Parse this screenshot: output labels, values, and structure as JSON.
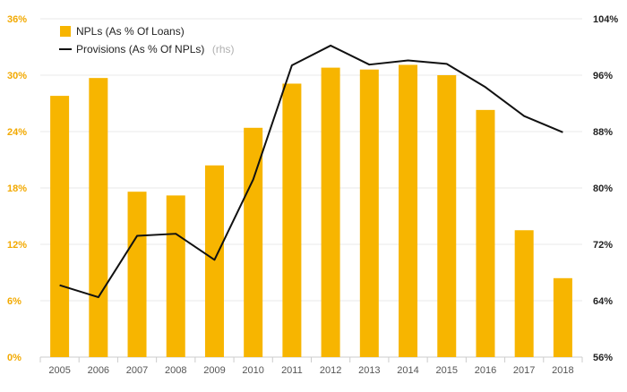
{
  "chart_data": {
    "type": "bar+line",
    "categories": [
      "2005",
      "2006",
      "2007",
      "2008",
      "2009",
      "2010",
      "2011",
      "2012",
      "2013",
      "2014",
      "2015",
      "2016",
      "2017",
      "2018"
    ],
    "series": [
      {
        "name": "NPLs (As % Of Loans)",
        "type": "bar",
        "axis": "left",
        "color": "#f7b500",
        "values": [
          27.8,
          29.7,
          17.6,
          17.2,
          20.4,
          24.4,
          29.1,
          30.8,
          30.6,
          31.1,
          30.0,
          26.3,
          13.5,
          8.4
        ]
      },
      {
        "name": "Provisions (As % Of NPLs)",
        "name_suffix": "(rhs)",
        "type": "line",
        "axis": "right",
        "color": "#111111",
        "values": [
          66.2,
          64.5,
          73.2,
          73.5,
          69.8,
          81.2,
          97.4,
          100.2,
          97.5,
          98.1,
          97.6,
          94.3,
          90.2,
          87.9
        ]
      }
    ],
    "left_axis": {
      "min": 0,
      "max": 36,
      "ticks": [
        "0%",
        "6%",
        "12%",
        "18%",
        "24%",
        "30%",
        "36%"
      ]
    },
    "right_axis": {
      "min": 56,
      "max": 104,
      "ticks": [
        "56%",
        "64%",
        "72%",
        "80%",
        "88%",
        "96%",
        "104%"
      ]
    },
    "grid": true,
    "legend_position": "top-left"
  }
}
